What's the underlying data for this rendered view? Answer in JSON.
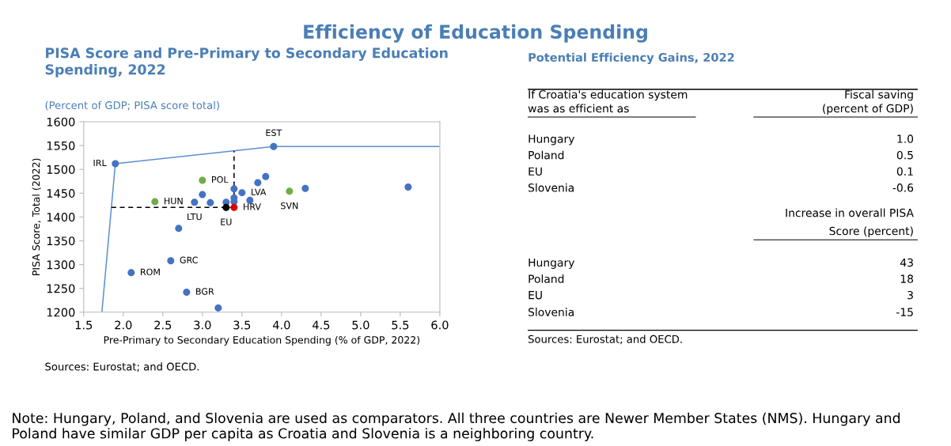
{
  "chart_data": [
    {
      "type": "other",
      "title": "Efficiency of Education Spending",
      "annotations": [
        "Note: Hungary, Poland, and Slovenia are used as comparators. All three countries are Newer Member States (NMS). Hungary and Poland have similar GDP per capita as Croatia and Slovenia is a neighboring country."
      ]
    },
    {
      "type": "scatter",
      "title": "PISA Score and Pre-Primary to Secondary Education\nSpending, 2022",
      "subtitle": "(Percent of GDP; PISA score total)",
      "xlabel": "Pre-Primary to Secondary Education Spending (% of GDP, 2022)",
      "ylabel": "PISA Score, Total (2022)",
      "xlim": [
        1.5,
        6.0
      ],
      "xticks": [
        {
          "value": 1.5,
          "label": "1.5"
        },
        {
          "value": 2.0,
          "label": "2.0"
        },
        {
          "value": 2.5,
          "label": "2.5"
        },
        {
          "value": 3.0,
          "label": "3.0"
        },
        {
          "value": 3.5,
          "label": "3.5"
        },
        {
          "value": 4.0,
          "label": "4.0"
        },
        {
          "value": 4.5,
          "label": "4.5"
        },
        {
          "value": 5.0,
          "label": "5.0"
        },
        {
          "value": 5.5,
          "label": "5.5"
        },
        {
          "value": 6.0,
          "label": "6.0"
        }
      ],
      "ylim": [
        1200,
        1600
      ],
      "yticks": [
        1200,
        1250,
        1300,
        1350,
        1400,
        1450,
        1500,
        1550,
        1600
      ],
      "grid": false,
      "legend": false,
      "marker": "circle",
      "series": [
        {
          "type": "line",
          "color": "#5b8fd0",
          "line_style": "solid",
          "marker": "none",
          "x": [
            1.73,
            1.9,
            3.9,
            6.0
          ],
          "values": [
            1200,
            1512,
            1548,
            1548
          ]
        },
        {
          "type": "line",
          "color": "#000000",
          "line_style": "dashed",
          "marker": "none",
          "x": [
            1.85,
            3.4,
            3.4
          ],
          "values": [
            1420,
            1420,
            1539
          ]
        },
        {
          "color": "#4472c4",
          "x": [
            1.9,
            3.9,
            2.9,
            3.0,
            3.1,
            3.3,
            3.4,
            3.4,
            3.4,
            3.5,
            3.6,
            3.7,
            3.8,
            4.3,
            5.6,
            2.7,
            2.6,
            2.1,
            2.8,
            3.2
          ],
          "values": [
            1512,
            1548,
            1431,
            1447,
            1430,
            1431,
            1459,
            1440,
            1432,
            1451,
            1435,
            1472,
            1485,
            1460,
            1463,
            1376,
            1308,
            1283,
            1242,
            1209
          ]
        },
        {
          "color": "#70ad47",
          "x": [
            3.0,
            2.4,
            4.1
          ],
          "values": [
            1477,
            1432,
            1454
          ]
        },
        {
          "color": "#000000",
          "x": [
            3.3
          ],
          "values": [
            1420
          ]
        },
        {
          "color": "#e00000",
          "x": [
            3.4
          ],
          "values": [
            1420
          ]
        }
      ],
      "annotations": [
        {
          "text": "IRL",
          "x": 1.9,
          "y": 1512
        },
        {
          "text": "EST",
          "x": 3.9,
          "y": 1548
        },
        {
          "text": "POL",
          "x": 3.0,
          "y": 1477
        },
        {
          "text": "HUN",
          "x": 2.4,
          "y": 1432
        },
        {
          "text": "LTU",
          "x": 2.9,
          "y": 1431
        },
        {
          "text": "LVA",
          "x": 3.5,
          "y": 1451
        },
        {
          "text": "HRV",
          "x": 3.4,
          "y": 1420
        },
        {
          "text": "EU",
          "x": 3.3,
          "y": 1420
        },
        {
          "text": "SVN",
          "x": 4.1,
          "y": 1454
        },
        {
          "text": "GRC",
          "x": 2.6,
          "y": 1308
        },
        {
          "text": "ROM",
          "x": 2.1,
          "y": 1283
        },
        {
          "text": "BGR",
          "x": 2.8,
          "y": 1242
        },
        "Sources: Eurostat; and OECD."
      ]
    },
    {
      "type": "other",
      "title": "Potential Efficiency Gains, 2022",
      "annotations": [
        "If Croatia's education system\nwas as efficient as",
        "Fiscal saving\n(percent of GDP)",
        "Hungary",
        "Poland",
        "EU",
        "Slovenia",
        "1.0",
        "0.5",
        "0.1",
        "-0.6",
        "Increase in overall PISA\nScore (percent)",
        "Hungary",
        "Poland",
        "EU",
        "Slovenia",
        "43",
        "18",
        "3",
        "-15",
        "Sources: Eurostat; and OECD."
      ]
    }
  ]
}
